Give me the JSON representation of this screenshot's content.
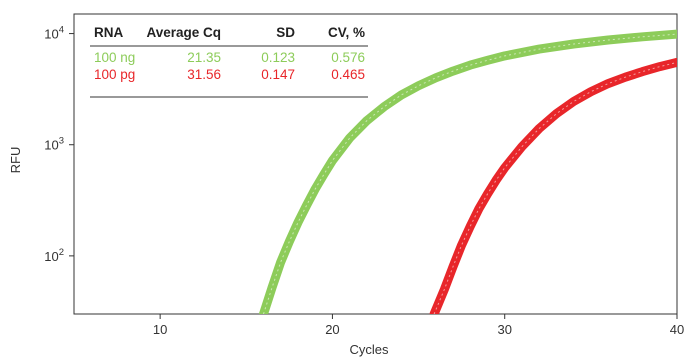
{
  "chart_data": {
    "type": "line",
    "xlabel": "Cycles",
    "ylabel": "RFU",
    "xlim": [
      5,
      40
    ],
    "ylim": [
      30,
      15000
    ],
    "yscale": "log",
    "x_ticks": [
      10,
      20,
      30,
      40
    ],
    "y_ticks": [
      {
        "value": 100,
        "base": "10",
        "exp": "2"
      },
      {
        "value": 1000,
        "base": "10",
        "exp": "3"
      },
      {
        "value": 10000,
        "base": "10",
        "exp": "4"
      }
    ],
    "grid": false,
    "series": [
      {
        "name": "100 ng",
        "color": "#8dcc5a",
        "x": [
          16.0,
          16.5,
          17.0,
          17.5,
          18.0,
          18.5,
          19.0,
          19.5,
          20.0,
          21.0,
          22.0,
          23.0,
          24.0,
          25.0,
          26.0,
          27.0,
          28.0,
          29.0,
          30.0,
          32.0,
          34.0,
          36.0,
          38.0,
          40.0
        ],
        "y": [
          30,
          52,
          88,
          135,
          200,
          285,
          400,
          540,
          720,
          1150,
          1650,
          2200,
          2800,
          3400,
          4000,
          4600,
          5200,
          5750,
          6300,
          7250,
          8050,
          8750,
          9350,
          9900
        ]
      },
      {
        "name": "100 pg",
        "color": "#e8262a",
        "x": [
          25.9,
          26.5,
          27.0,
          27.5,
          28.0,
          28.5,
          29.0,
          29.5,
          30.0,
          31.0,
          32.0,
          33.0,
          34.0,
          35.0,
          36.0,
          37.0,
          38.0,
          39.0,
          40.0
        ],
        "y": [
          30,
          50,
          80,
          125,
          185,
          265,
          360,
          480,
          620,
          960,
          1400,
          1900,
          2450,
          3000,
          3550,
          4050,
          4550,
          5050,
          5500
        ]
      }
    ],
    "table": {
      "headers": [
        "RNA",
        "Average Cq",
        "SD",
        "CV, %"
      ],
      "rows": [
        {
          "cells": [
            "100 ng",
            "21.35",
            "0.123",
            "0.576"
          ],
          "color": "#8dcc5a"
        },
        {
          "cells": [
            "100 pg",
            "31.56",
            "0.147",
            "0.465"
          ],
          "color": "#e8262a"
        }
      ]
    }
  }
}
